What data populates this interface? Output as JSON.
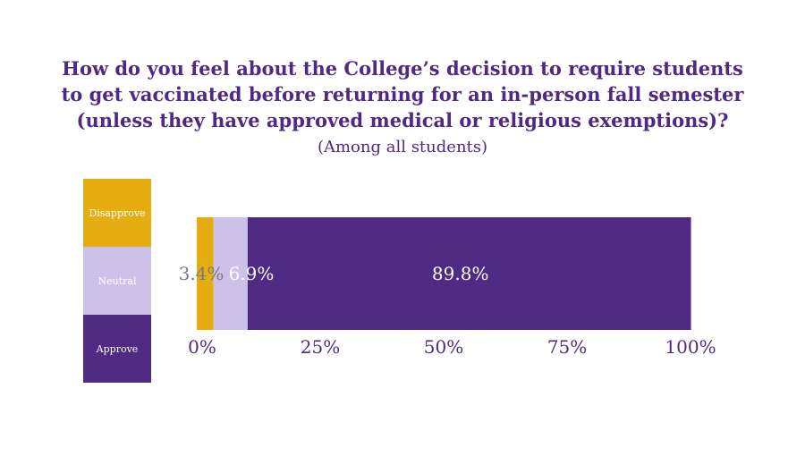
{
  "chart_data": {
    "type": "bar",
    "stacked": true,
    "orientation": "horizontal",
    "title_lines": [
      "How do you feel about the College’s decision to require students",
      "to get vaccinated before returning for an in-person fall semester",
      "(unless they have approved medical or religious exemptions)?"
    ],
    "subtitle": "(Among all students)",
    "xlim": [
      0,
      100
    ],
    "x_ticks": [
      "0%",
      "25%",
      "50%",
      "75%",
      "100%"
    ],
    "x_tick_values": [
      0,
      25,
      50,
      75,
      100
    ],
    "legend_position": "left",
    "legend": [
      {
        "name": "Disapprove",
        "color": "#e6ad12"
      },
      {
        "name": "Neutral",
        "color": "#cdc1ea"
      },
      {
        "name": "Approve",
        "color": "#4f2a82"
      }
    ],
    "series": [
      {
        "name": "Disapprove",
        "value": 3.4,
        "label": "3.4%",
        "color": "#e6ad12",
        "label_color": "#7a7a7a"
      },
      {
        "name": "Neutral",
        "value": 6.9,
        "label": "6.9%",
        "color": "#cdc1ea",
        "label_color": "#ffffff"
      },
      {
        "name": "Approve",
        "value": 89.8,
        "label": "89.8%",
        "color": "#4f2a82",
        "label_color": "#ffffff"
      }
    ]
  }
}
